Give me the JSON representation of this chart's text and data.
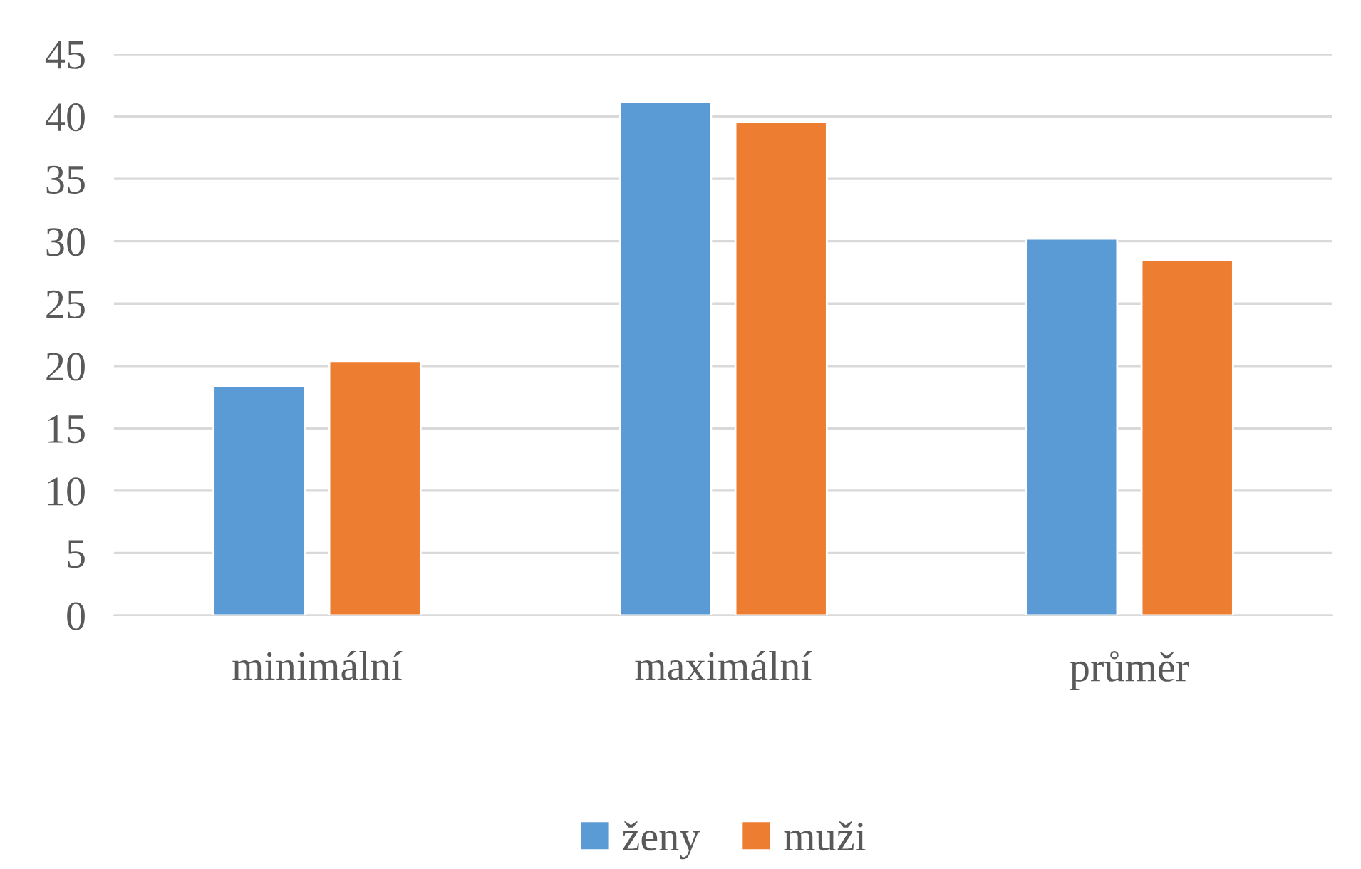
{
  "chart_data": {
    "type": "bar",
    "categories": [
      "minimální",
      "maximální",
      "průměr"
    ],
    "series": [
      {
        "name": "ženy",
        "color": "#5b9bd5",
        "values": [
          18.4,
          41.2,
          30.2
        ]
      },
      {
        "name": "muži",
        "color": "#ed7d31",
        "values": [
          20.4,
          39.6,
          28.5
        ]
      }
    ],
    "ylim": [
      0,
      45
    ],
    "yticks": [
      0,
      5,
      10,
      15,
      20,
      25,
      30,
      35,
      40,
      45
    ],
    "grid": "y",
    "legend": "bottom"
  }
}
